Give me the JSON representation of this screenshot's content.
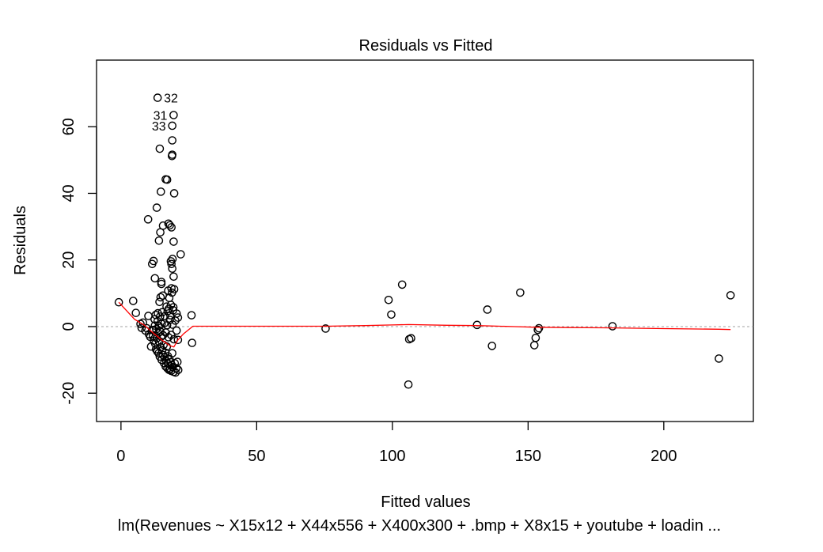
{
  "chart_data": {
    "type": "scatter",
    "title": "Residuals vs Fitted",
    "xlabel": "Fitted values",
    "ylabel": "Residuals",
    "subtitle": "lm(Revenues ~ X15x12 + X44x556 + X400x300 + .bmp + X8x15 + youtube + loadin ...",
    "xlim": [
      -9,
      233
    ],
    "ylim": [
      -28.5,
      80
    ],
    "x_ticks": [
      0,
      50,
      100,
      150,
      200
    ],
    "y_ticks": [
      -20,
      0,
      20,
      40,
      60
    ],
    "reference_line_y": 0,
    "colors": {
      "points": "#000000",
      "smoother": "#ff0000",
      "reference": "#a0a0a0"
    },
    "labeled_points": [
      {
        "label": "32",
        "x": 13.5,
        "y": 68.7
      },
      {
        "label": "31",
        "x": 19.4,
        "y": 63.5
      },
      {
        "label": "33",
        "x": 18.9,
        "y": 60.3
      }
    ],
    "points": [
      [
        -0.8,
        7.3
      ],
      [
        4.5,
        7.7
      ],
      [
        5.5,
        4.1
      ],
      [
        7.2,
        0.8
      ],
      [
        7.6,
        -0.4
      ],
      [
        8.1,
        1.2
      ],
      [
        9.0,
        -1.2
      ],
      [
        9.5,
        -0.5
      ],
      [
        10.1,
        3.2
      ],
      [
        10.3,
        -2.3
      ],
      [
        10.8,
        -3.1
      ],
      [
        11.1,
        -6.0
      ],
      [
        11.5,
        -1.0
      ],
      [
        11.8,
        -2.8
      ],
      [
        12.1,
        -4.2
      ],
      [
        12.4,
        2.2
      ],
      [
        12.6,
        -5.1
      ],
      [
        12.9,
        -6.8
      ],
      [
        13.2,
        -3.5
      ],
      [
        13.4,
        -7.5
      ],
      [
        13.7,
        -2.0
      ],
      [
        13.9,
        -8.0
      ],
      [
        14.1,
        -4.6
      ],
      [
        14.3,
        -9.0
      ],
      [
        14.6,
        -6.2
      ],
      [
        14.8,
        -3.0
      ],
      [
        15.0,
        -10.0
      ],
      [
        15.2,
        -7.1
      ],
      [
        15.4,
        -8.5
      ],
      [
        15.7,
        -5.5
      ],
      [
        15.9,
        -11.0
      ],
      [
        16.1,
        -9.2
      ],
      [
        16.3,
        -7.8
      ],
      [
        16.5,
        -12.0
      ],
      [
        16.7,
        -10.4
      ],
      [
        16.9,
        -6.0
      ],
      [
        17.1,
        -12.5
      ],
      [
        17.3,
        -8.9
      ],
      [
        17.5,
        -11.2
      ],
      [
        17.7,
        -13.0
      ],
      [
        17.9,
        -9.8
      ],
      [
        18.1,
        -12.8
      ],
      [
        18.3,
        -10.7
      ],
      [
        18.5,
        -13.3
      ],
      [
        18.7,
        -11.5
      ],
      [
        18.9,
        -8.0
      ],
      [
        19.1,
        -12.2
      ],
      [
        19.4,
        -13.6
      ],
      [
        19.8,
        -11.0
      ],
      [
        20.1,
        -13.8
      ],
      [
        20.4,
        -12.5
      ],
      [
        20.8,
        -10.6
      ],
      [
        21.1,
        -13.0
      ],
      [
        12.0,
        -1.0
      ],
      [
        12.5,
        0.3
      ],
      [
        13.0,
        -0.8
      ],
      [
        13.5,
        1.6
      ],
      [
        14.0,
        0.2
      ],
      [
        14.5,
        -1.5
      ],
      [
        15.0,
        0.8
      ],
      [
        15.5,
        -2.6
      ],
      [
        16.0,
        1.0
      ],
      [
        16.5,
        -1.8
      ],
      [
        17.0,
        0.4
      ],
      [
        17.5,
        -3.2
      ],
      [
        18.0,
        2.0
      ],
      [
        18.5,
        -2.5
      ],
      [
        19.0,
        0.6
      ],
      [
        19.5,
        -3.8
      ],
      [
        20.0,
        1.8
      ],
      [
        20.5,
        -1.2
      ],
      [
        20.5,
        3.9
      ],
      [
        21.0,
        -4.0
      ],
      [
        21.0,
        2.7
      ],
      [
        12.8,
        3.5
      ],
      [
        13.6,
        4.0
      ],
      [
        14.4,
        3.0
      ],
      [
        15.2,
        4.3
      ],
      [
        16.2,
        3.1
      ],
      [
        17.2,
        4.6
      ],
      [
        18.2,
        3.4
      ],
      [
        19.2,
        4.9
      ],
      [
        16.8,
        6.0
      ],
      [
        17.6,
        5.3
      ],
      [
        18.4,
        6.5
      ],
      [
        19.3,
        5.8
      ],
      [
        14.2,
        7.4
      ],
      [
        14.6,
        8.8
      ],
      [
        15.4,
        9.3
      ],
      [
        17.8,
        8.6
      ],
      [
        18.8,
        10.2
      ],
      [
        19.6,
        11.2
      ],
      [
        17.4,
        10.8
      ],
      [
        18.6,
        11.5
      ],
      [
        14.9,
        12.8
      ],
      [
        12.5,
        14.5
      ],
      [
        14.9,
        13.4
      ],
      [
        19.4,
        15.0
      ],
      [
        18.9,
        17.4
      ],
      [
        18.4,
        19.6
      ],
      [
        19.0,
        20.3
      ],
      [
        18.6,
        18.8
      ],
      [
        11.5,
        18.8
      ],
      [
        12.0,
        19.7
      ],
      [
        22.0,
        21.7
      ],
      [
        14.0,
        25.8
      ],
      [
        19.4,
        25.5
      ],
      [
        14.5,
        28.3
      ],
      [
        15.5,
        30.3
      ],
      [
        17.5,
        30.9
      ],
      [
        18.0,
        30.4
      ],
      [
        18.6,
        29.8
      ],
      [
        10.0,
        32.2
      ],
      [
        13.2,
        35.7
      ],
      [
        14.7,
        40.5
      ],
      [
        19.6,
        40.0
      ],
      [
        16.5,
        44.2
      ],
      [
        17.0,
        44.1
      ],
      [
        18.8,
        51.2
      ],
      [
        18.9,
        51.6
      ],
      [
        14.3,
        53.4
      ],
      [
        18.9,
        55.9
      ],
      [
        13.5,
        68.7
      ],
      [
        19.4,
        63.5
      ],
      [
        18.9,
        60.3
      ],
      [
        26.0,
        3.4
      ],
      [
        26.2,
        -4.9
      ],
      [
        75.4,
        -0.6
      ],
      [
        98.6,
        8.0
      ],
      [
        99.6,
        3.6
      ],
      [
        103.6,
        12.6
      ],
      [
        105.9,
        -17.4
      ],
      [
        106.2,
        -3.8
      ],
      [
        106.9,
        -3.5
      ],
      [
        131.2,
        0.5
      ],
      [
        135.0,
        5.1
      ],
      [
        136.7,
        -5.8
      ],
      [
        147.1,
        10.2
      ],
      [
        152.3,
        -5.6
      ],
      [
        152.8,
        -3.4
      ],
      [
        153.6,
        -1.0
      ],
      [
        154.0,
        -0.5
      ],
      [
        181.1,
        0.1
      ],
      [
        220.3,
        -9.6
      ],
      [
        224.6,
        9.4
      ]
    ],
    "smoother": [
      [
        -0.8,
        7.3
      ],
      [
        5.0,
        2.2
      ],
      [
        8.5,
        0.5
      ],
      [
        12.0,
        -2.0
      ],
      [
        15.0,
        -4.0
      ],
      [
        18.0,
        -5.7
      ],
      [
        19.5,
        -6.1
      ],
      [
        21.0,
        -4.0
      ],
      [
        23.0,
        -2.2
      ],
      [
        26.5,
        0.1
      ],
      [
        50,
        0.1
      ],
      [
        75.4,
        0.1
      ],
      [
        90,
        0.3
      ],
      [
        100,
        0.5
      ],
      [
        106,
        0.6
      ],
      [
        120,
        0.4
      ],
      [
        131.2,
        0.3
      ],
      [
        145,
        0.0
      ],
      [
        153,
        -0.2
      ],
      [
        165,
        -0.3
      ],
      [
        181.1,
        -0.4
      ],
      [
        200,
        -0.6
      ],
      [
        220.3,
        -0.8
      ],
      [
        224.6,
        -0.9
      ]
    ]
  }
}
